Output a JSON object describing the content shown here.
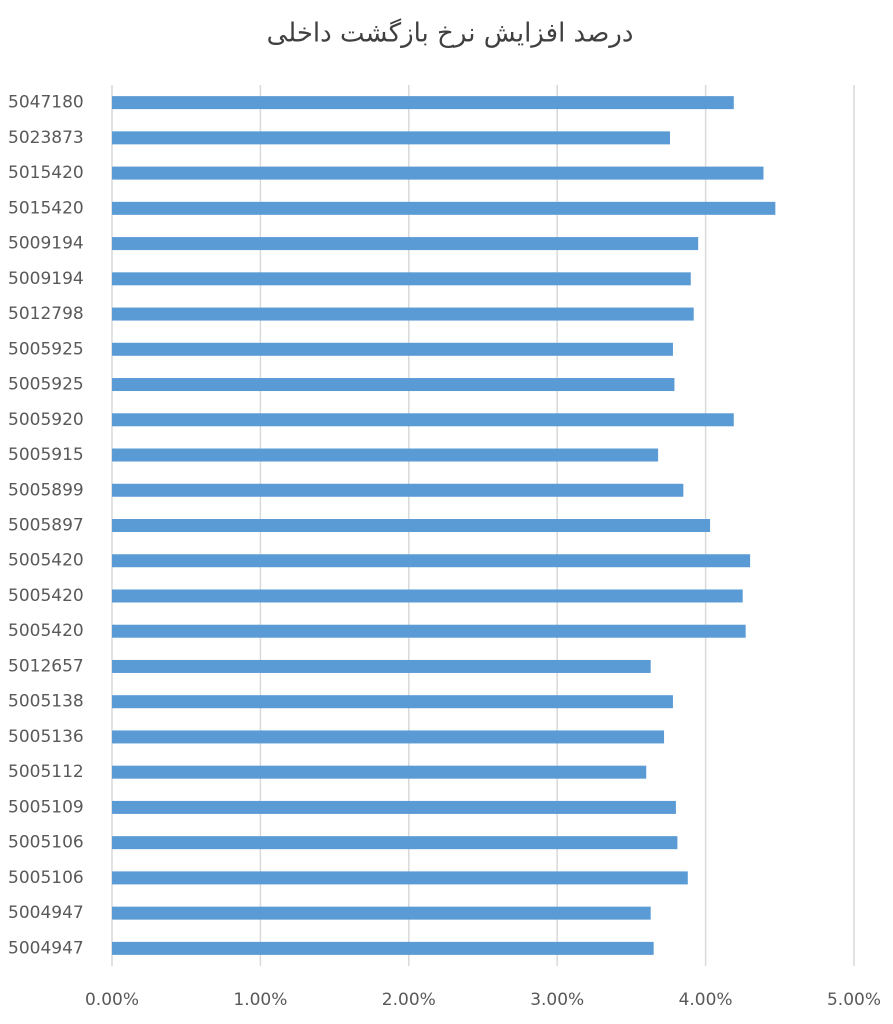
{
  "chart_data": {
    "type": "bar",
    "orientation": "horizontal",
    "title": "درصد افزایش نرخ بازگشت داخلی",
    "categories": [
      "5047180",
      "5023873",
      "5015420",
      "5015420",
      "5009194",
      "5009194",
      "5012798",
      "5005925",
      "5005925",
      "5005920",
      "5005915",
      "5005899",
      "5005897",
      "5005420",
      "5005420",
      "5005420",
      "5012657",
      "5005138",
      "5005136",
      "5005112",
      "5005109",
      "5005106",
      "5005106",
      "5004947",
      "5004947"
    ],
    "values": [
      4.19,
      3.76,
      4.39,
      4.47,
      3.95,
      3.9,
      3.92,
      3.78,
      3.79,
      4.19,
      3.68,
      3.85,
      4.03,
      4.3,
      4.25,
      4.27,
      3.63,
      3.78,
      3.72,
      3.6,
      3.8,
      3.81,
      3.88,
      3.63,
      3.65
    ],
    "color": "#5b9bd5",
    "xlim": [
      0,
      5
    ],
    "xticks": [
      {
        "value": 0,
        "label": "0.00%"
      },
      {
        "value": 1,
        "label": "1.00%"
      },
      {
        "value": 2,
        "label": "2.00%"
      },
      {
        "value": 3,
        "label": "3.00%"
      },
      {
        "value": 4,
        "label": "4.00%"
      },
      {
        "value": 5,
        "label": "5.00%"
      }
    ],
    "grid": true
  }
}
